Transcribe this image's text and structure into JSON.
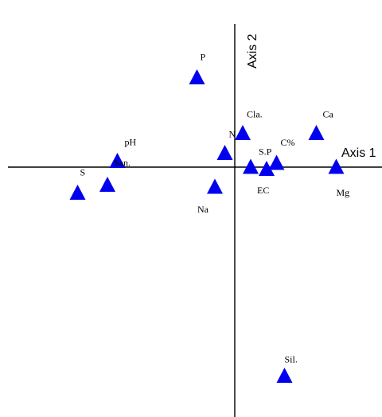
{
  "chart_data": {
    "type": "scatter",
    "title": "",
    "xlabel": "Axis 1",
    "ylabel": "Axis 2",
    "xlim": [
      -1.0,
      0.62
    ],
    "ylim": [
      -1.06,
      0.6
    ],
    "grid": false,
    "marker_color": "#0000ee",
    "points": [
      {
        "label": "P",
        "x": -0.19,
        "y": 0.45
      },
      {
        "label": "Cla.",
        "x": 0.04,
        "y": 0.17
      },
      {
        "label": "Ca",
        "x": 0.41,
        "y": 0.17
      },
      {
        "label": "N",
        "x": -0.05,
        "y": 0.07
      },
      {
        "label": "pH",
        "x": -0.59,
        "y": 0.03
      },
      {
        "label": "C%",
        "x": 0.21,
        "y": 0.02
      },
      {
        "label": "S.P",
        "x": 0.16,
        "y": -0.01
      },
      {
        "label": "EC",
        "x": 0.08,
        "y": 0.0
      },
      {
        "label": "Mg",
        "x": 0.51,
        "y": 0.0
      },
      {
        "label": "San.",
        "x": -0.64,
        "y": -0.09
      },
      {
        "label": "S",
        "x": -0.79,
        "y": -0.13
      },
      {
        "label": "Na",
        "x": -0.1,
        "y": -0.1
      },
      {
        "label": "Sil.",
        "x": 0.25,
        "y": -1.05
      }
    ]
  }
}
